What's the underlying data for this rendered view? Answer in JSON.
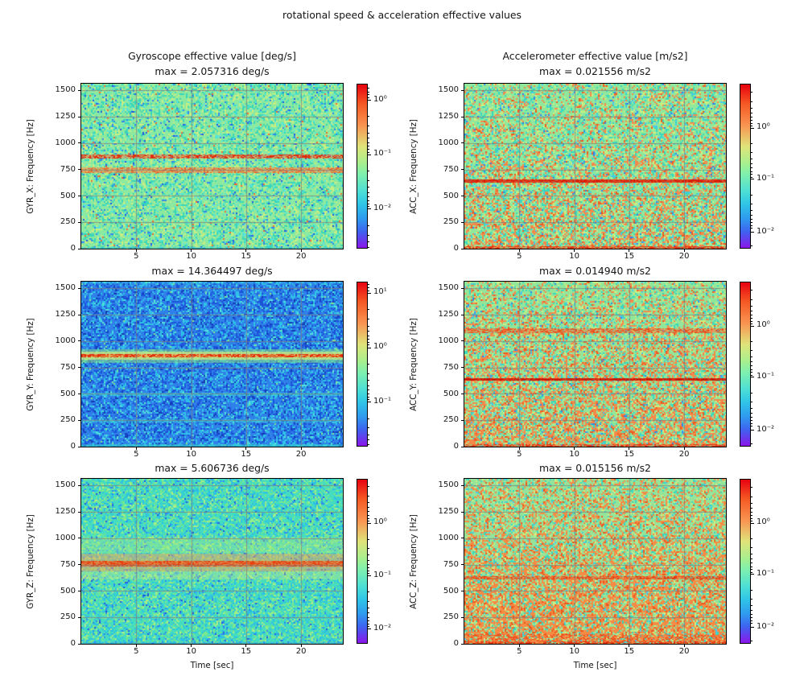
{
  "figure": {
    "title": "rotational speed & acceleration effective values",
    "background": "#ffffff",
    "colormap": "rainbow"
  },
  "chart_data": {
    "type": "heatmap",
    "subtype": "spectrogram-grid",
    "layout": {
      "rows": 3,
      "cols": 2,
      "grid_on": true
    },
    "x": {
      "label": "Time [sec]",
      "ticks": [
        5,
        10,
        15,
        20
      ],
      "range": [
        0,
        23.8
      ]
    },
    "y": {
      "ticks": [
        0,
        250,
        500,
        750,
        1000,
        1250,
        1500
      ],
      "range": [
        0,
        1564
      ]
    },
    "panels": [
      {
        "id": "GYR_X",
        "title": "Gyroscope effective value [deg/s]",
        "max_label": "max = 2.057316 deg/s",
        "max_value": 2.057316,
        "unit": "deg/s",
        "ylabel": "GYR_X: Frequency [Hz]",
        "colorbar": {
          "ticks": [
            {
              "l": "10⁰",
              "f": 0.1
            },
            {
              "l": "10⁻¹",
              "f": 0.43
            },
            {
              "l": "10⁻²",
              "f": 0.76
            }
          ]
        },
        "render": {
          "base_color": "#8ce9a0",
          "noise": [
            {
              "color": "#3ad6b9",
              "density": 0.28
            },
            {
              "color": "#56e4d8",
              "density": 0.1
            },
            {
              "color": "#2f86ee",
              "density": 0.05
            },
            {
              "color": "#2157e2",
              "density": 0.012
            },
            {
              "color": "#c8ee82",
              "density": 0.14
            },
            {
              "color": "#ef6a30",
              "density": 0.012
            }
          ],
          "bands": [
            {
              "from_hz": 855,
              "to_hz": 895,
              "color": "#f3804a",
              "alpha": 0.55,
              "speckle_color": "#e02c0e",
              "speckle_density": 0.45
            },
            {
              "from_hz": 715,
              "to_hz": 768,
              "color": "#f5a055",
              "alpha": 0.65,
              "speckle_color": "#ee6426",
              "speckle_density": 0.35
            },
            {
              "from_hz": 0,
              "to_hz": 18,
              "color": "#3fc9c4",
              "alpha": 0.45,
              "speckle_color": "#2fb8d8",
              "speckle_density": 0.3
            }
          ]
        }
      },
      {
        "id": "ACC_X",
        "title": "Accelerometer effective value [m/s2]",
        "max_label": "max = 0.021556 m/s2",
        "max_value": 0.021556,
        "unit": "m/s2",
        "ylabel": "ACC_X: Frequency [Hz]",
        "colorbar": {
          "ticks": [
            {
              "l": "10⁰",
              "f": 0.27
            },
            {
              "l": "10⁻¹",
              "f": 0.58
            },
            {
              "l": "10⁻²",
              "f": 0.9
            }
          ]
        },
        "render": {
          "base_color": "#90e89c",
          "noise": [
            {
              "color": "#f5894a",
              "density": 0.34,
              "bottom_weighted": 1
            },
            {
              "color": "#ee5b1e",
              "density": 0.07,
              "bottom_weighted": 1
            },
            {
              "color": "#38d8c0",
              "density": 0.16
            },
            {
              "color": "#49c8ee",
              "density": 0.04
            },
            {
              "color": "#cdee80",
              "density": 0.12
            },
            {
              "color": "#2f86ee",
              "density": 0.02
            }
          ],
          "bands": [
            {
              "from_hz": 628,
              "to_hz": 655,
              "color": "#e63214",
              "alpha": 0.8,
              "speckle_color": "#d81e06",
              "speckle_density": 0.55
            },
            {
              "from_hz": 0,
              "to_hz": 22,
              "color": "#ec5a26",
              "alpha": 0.4,
              "speckle_color": "#e23210",
              "speckle_density": 0.5
            }
          ]
        }
      },
      {
        "id": "GYR_Y",
        "max_label": "max = 14.364497 deg/s",
        "max_value": 14.364497,
        "unit": "deg/s",
        "ylabel": "GYR_Y: Frequency [Hz]",
        "colorbar": {
          "ticks": [
            {
              "l": "10¹",
              "f": 0.07
            },
            {
              "l": "10⁰",
              "f": 0.4
            },
            {
              "l": "10⁻¹",
              "f": 0.73
            }
          ]
        },
        "render": {
          "base_color": "#2f80e9",
          "noise": [
            {
              "color": "#2fc2e8",
              "density": 0.3
            },
            {
              "color": "#57e3d8",
              "density": 0.07
            },
            {
              "color": "#1b53da",
              "density": 0.22
            },
            {
              "color": "#143ab4",
              "density": 0.05
            },
            {
              "color": "#7fe890",
              "density": 0.008
            }
          ],
          "bands": [
            {
              "from_hz": 795,
              "to_hz": 925,
              "color": "#8fe87c",
              "alpha": 0.5
            },
            {
              "from_hz": 822,
              "to_hz": 898,
              "color": "#dff07b",
              "alpha": 0.65
            },
            {
              "from_hz": 845,
              "to_hz": 876,
              "color": "#f5a23f",
              "alpha": 0.7,
              "speckle_color": "#e42d0c",
              "speckle_density": 0.6
            },
            {
              "from_hz": 478,
              "to_hz": 508,
              "color": "#3fd8d2",
              "alpha": 0.4,
              "speckle_color": "#35cde0",
              "speckle_density": 0.25
            },
            {
              "from_hz": 232,
              "to_hz": 262,
              "color": "#3fd8d2",
              "alpha": 0.35,
              "speckle_color": "#35cde0",
              "speckle_density": 0.2
            },
            {
              "from_hz": 0,
              "to_hz": 22,
              "color": "#38d0c8",
              "alpha": 0.5,
              "speckle_color": "#2fc8d8",
              "speckle_density": 0.3
            },
            {
              "from_hz": 1542,
              "to_hz": 1564,
              "color": "#35c8e0",
              "alpha": 0.3
            }
          ]
        }
      },
      {
        "id": "ACC_Y",
        "max_label": "max = 0.014940 m/s2",
        "max_value": 0.01494,
        "unit": "m/s2",
        "ylabel": "ACC_Y: Frequency [Hz]",
        "colorbar": {
          "ticks": [
            {
              "l": "10⁰",
              "f": 0.27
            },
            {
              "l": "10⁻¹",
              "f": 0.58
            },
            {
              "l": "10⁻²",
              "f": 0.9
            }
          ]
        },
        "render": {
          "base_color": "#92e69a",
          "noise": [
            {
              "color": "#f5894a",
              "density": 0.42,
              "bottom_weighted": 1
            },
            {
              "color": "#ee5b1e",
              "density": 0.09,
              "bottom_weighted": 1
            },
            {
              "color": "#38d8c0",
              "density": 0.13
            },
            {
              "color": "#49c8ee",
              "density": 0.03
            },
            {
              "color": "#cdee80",
              "density": 0.1
            },
            {
              "color": "#2f86ee",
              "density": 0.015
            }
          ],
          "bands": [
            {
              "from_hz": 625,
              "to_hz": 652,
              "color": "#dd1f06",
              "alpha": 0.85,
              "speckle_color": "#c81202",
              "speckle_density": 0.6
            },
            {
              "from_hz": 1078,
              "to_hz": 1125,
              "color": "#f0854a",
              "alpha": 0.5,
              "speckle_color": "#ea4f1c",
              "speckle_density": 0.4
            },
            {
              "from_hz": 0,
              "to_hz": 20,
              "color": "#ec5a26",
              "alpha": 0.35,
              "speckle_color": "#e23210",
              "speckle_density": 0.45
            }
          ]
        }
      },
      {
        "id": "GYR_Z",
        "max_label": "max = 5.606736 deg/s",
        "max_value": 5.606736,
        "unit": "deg/s",
        "ylabel": "GYR_Z: Frequency [Hz]",
        "colorbar": {
          "ticks": [
            {
              "l": "10⁰",
              "f": 0.27
            },
            {
              "l": "10⁻¹",
              "f": 0.59
            },
            {
              "l": "10⁻²",
              "f": 0.91
            }
          ]
        },
        "render": {
          "base_color": "#45dcc0",
          "noise": [
            {
              "color": "#2cc0e4",
              "density": 0.28
            },
            {
              "color": "#2e8bee",
              "density": 0.07
            },
            {
              "color": "#79e88e",
              "density": 0.22
            },
            {
              "color": "#a8ef86",
              "density": 0.08
            },
            {
              "color": "#2457e0",
              "density": 0.015
            }
          ],
          "bands": [
            {
              "from_hz": 860,
              "to_hz": 1010,
              "color": "#b9ea7c",
              "alpha": 0.35
            },
            {
              "from_hz": 610,
              "to_hz": 690,
              "color": "#d8ec80",
              "alpha": 0.35
            },
            {
              "from_hz": 685,
              "to_hz": 855,
              "color": "#f8a055",
              "alpha": 0.5
            },
            {
              "from_hz": 735,
              "to_hz": 788,
              "color": "#f07030",
              "alpha": 0.75,
              "speckle_color": "#e8430f",
              "speckle_density": 0.5
            },
            {
              "from_hz": 0,
              "to_hz": 15,
              "color": "#2e8bee",
              "alpha": 0.35
            },
            {
              "from_hz": 240,
              "to_hz": 258,
              "color": "#38cfe0",
              "alpha": 0.3
            },
            {
              "from_hz": 492,
              "to_hz": 510,
              "color": "#38cfe0",
              "alpha": 0.25
            }
          ]
        }
      },
      {
        "id": "ACC_Z",
        "max_label": "max = 0.015156 m/s2",
        "max_value": 0.015156,
        "unit": "m/s2",
        "ylabel": "ACC_Z: Frequency [Hz]",
        "colorbar": {
          "ticks": [
            {
              "l": "10⁰",
              "f": 0.27
            },
            {
              "l": "10⁻¹",
              "f": 0.58
            },
            {
              "l": "10⁻²",
              "f": 0.9
            }
          ]
        },
        "render": {
          "base_color": "#95e49a",
          "noise": [
            {
              "color": "#f58b44",
              "density": 0.52,
              "bottom_weighted": 1
            },
            {
              "color": "#ec5a1e",
              "density": 0.1,
              "bottom_weighted": 1
            },
            {
              "color": "#38d8c0",
              "density": 0.11
            },
            {
              "color": "#49c8ee",
              "density": 0.025
            },
            {
              "color": "#cfee82",
              "density": 0.08
            }
          ],
          "bands": [
            {
              "from_hz": 608,
              "to_hz": 638,
              "color": "#ec5528",
              "alpha": 0.45,
              "speckle_color": "#e23b10",
              "speckle_density": 0.35
            },
            {
              "from_hz": 0,
              "to_hz": 95,
              "speckle_color": "#ee5322",
              "speckle_density": 0.3
            },
            {
              "from_hz": 0,
              "to_hz": 20,
              "speckle_color": "#e23210",
              "speckle_density": 0.4
            }
          ]
        }
      }
    ]
  }
}
